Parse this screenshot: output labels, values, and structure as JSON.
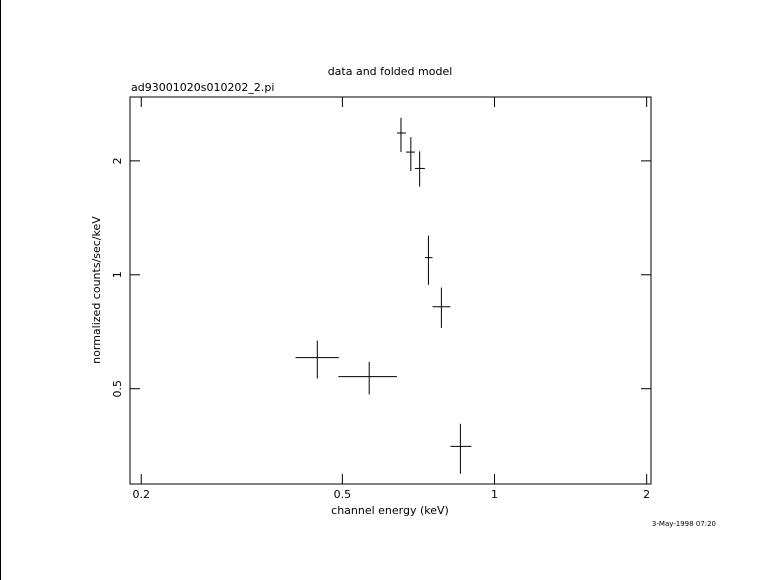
{
  "chart_data": {
    "type": "errorbar",
    "title": "data and folded model",
    "subtitle": "ad93001020s010202_2.pi",
    "x_label": "channel energy (keV)",
    "y_label": "normalized counts/sec/keV",
    "timestamp": "3-May-1998 07:20",
    "x_log": true,
    "y_log": true,
    "xlim": [
      0.19,
      2.04
    ],
    "ylim": [
      0.28,
      2.95
    ],
    "xticks": [
      0.2,
      0.5,
      1,
      2
    ],
    "yticks": [
      0.5,
      1,
      2
    ],
    "series": [
      {
        "color": "#000000",
        "x": [
          0.446,
          0.565,
          0.653,
          0.683,
          0.711,
          0.74,
          0.785,
          0.856
        ],
        "x_low": [
          0.404,
          0.491,
          0.641,
          0.668,
          0.696,
          0.728,
          0.754,
          0.818
        ],
        "x_high": [
          0.492,
          0.641,
          0.668,
          0.696,
          0.728,
          0.754,
          0.818,
          0.9
        ],
        "values": [
          0.604,
          0.538,
          2.37,
          2.11,
          1.91,
          1.11,
          0.823,
          0.352
        ],
        "y_low": [
          0.532,
          0.483,
          2.11,
          1.88,
          1.71,
          0.941,
          0.724,
          0.298
        ],
        "y_high": [
          0.67,
          0.589,
          2.6,
          2.31,
          2.12,
          1.27,
          0.925,
          0.404
        ]
      }
    ]
  }
}
